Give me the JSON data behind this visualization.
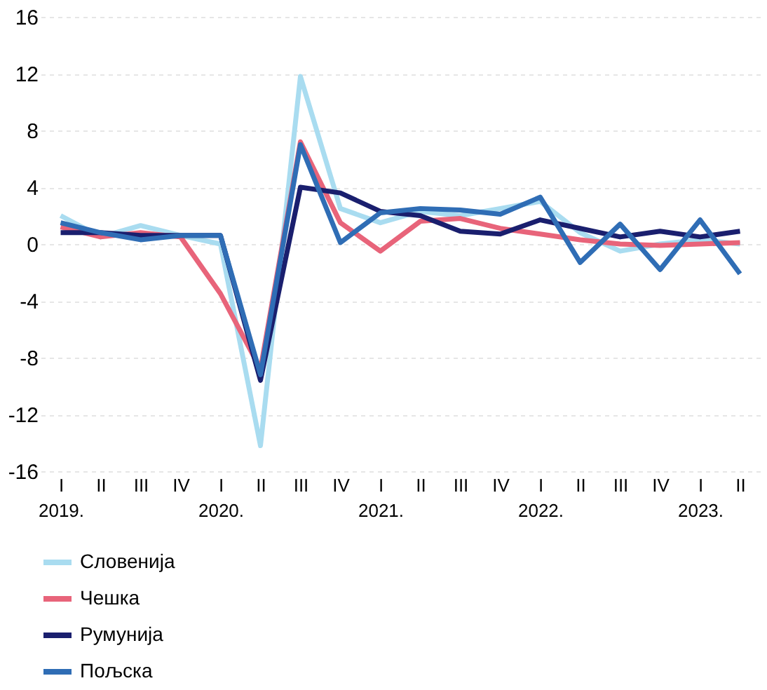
{
  "chart_data": {
    "type": "line",
    "categories": [
      "I\n2019.",
      "II",
      "III",
      "IV",
      "I\n2020.",
      "II",
      "III",
      "IV",
      "I\n2021.",
      "II",
      "III",
      "IV",
      "I\n2022.",
      "II",
      "III",
      "IV",
      "I\n2023.",
      "II"
    ],
    "series": [
      {
        "name": "Словенија",
        "color": "#a9dcf0",
        "values": [
          2.0,
          0.5,
          1.3,
          0.6,
          0.0,
          -14.2,
          11.8,
          2.5,
          1.5,
          2.3,
          2.0,
          2.5,
          3.0,
          0.8,
          -0.5,
          0.0,
          0.3,
          0.0
        ]
      },
      {
        "name": "Чешка",
        "color": "#e8647a",
        "values": [
          1.2,
          0.5,
          0.8,
          0.5,
          -3.5,
          -8.8,
          7.2,
          1.5,
          -0.5,
          1.6,
          1.8,
          1.1,
          0.7,
          0.3,
          0.0,
          -0.1,
          0.0,
          0.1
        ]
      },
      {
        "name": "Румунија",
        "color": "#1a1f6e",
        "values": [
          0.8,
          0.8,
          0.6,
          0.6,
          0.6,
          -9.6,
          4.0,
          3.6,
          2.3,
          2.0,
          0.9,
          0.7,
          1.7,
          1.1,
          0.5,
          0.9,
          0.5,
          0.9
        ]
      },
      {
        "name": "Пољска",
        "color": "#2f6db5",
        "values": [
          1.5,
          0.8,
          0.3,
          0.6,
          0.6,
          -9.2,
          7.0,
          0.1,
          2.2,
          2.5,
          2.4,
          2.1,
          3.3,
          -1.3,
          1.4,
          -1.8,
          1.7,
          -2.1
        ]
      }
    ],
    "ylim": [
      -16,
      16
    ],
    "yticks": [
      -16,
      -12,
      -8,
      -4,
      0,
      4,
      8,
      12,
      16
    ],
    "grid": "y",
    "legend": "bottom left",
    "marker": "none",
    "line_style": "solid"
  }
}
